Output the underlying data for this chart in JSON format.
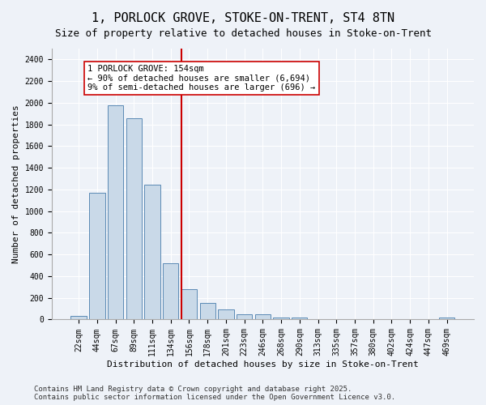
{
  "title_line1": "1, PORLOCK GROVE, STOKE-ON-TRENT, ST4 8TN",
  "title_line2": "Size of property relative to detached houses in Stoke-on-Trent",
  "xlabel": "Distribution of detached houses by size in Stoke-on-Trent",
  "ylabel": "Number of detached properties",
  "categories": [
    "22sqm",
    "44sqm",
    "67sqm",
    "89sqm",
    "111sqm",
    "134sqm",
    "156sqm",
    "178sqm",
    "201sqm",
    "223sqm",
    "246sqm",
    "268sqm",
    "290sqm",
    "313sqm",
    "335sqm",
    "357sqm",
    "380sqm",
    "402sqm",
    "424sqm",
    "447sqm",
    "469sqm"
  ],
  "values": [
    30,
    1170,
    1980,
    1860,
    1245,
    520,
    280,
    155,
    90,
    45,
    45,
    20,
    15,
    5,
    3,
    2,
    2,
    2,
    2,
    2,
    15
  ],
  "bar_color": "#c9d9e8",
  "bar_edge_color": "#5a8ab5",
  "vline_color": "#cc0000",
  "vline_x": 5.575,
  "annotation_text": "1 PORLOCK GROVE: 154sqm\n← 90% of detached houses are smaller (6,694)\n9% of semi-detached houses are larger (696) →",
  "annotation_box_color": "#ffffff",
  "annotation_box_edge_color": "#cc0000",
  "ylim": [
    0,
    2500
  ],
  "yticks": [
    0,
    200,
    400,
    600,
    800,
    1000,
    1200,
    1400,
    1600,
    1800,
    2000,
    2200,
    2400
  ],
  "bg_color": "#eef2f8",
  "plot_bg_color": "#eef2f8",
  "footer_text": "Contains HM Land Registry data © Crown copyright and database right 2025.\nContains public sector information licensed under the Open Government Licence v3.0.",
  "title_fontsize": 11,
  "subtitle_fontsize": 9,
  "axis_label_fontsize": 8,
  "tick_fontsize": 7,
  "annotation_fontsize": 7.5,
  "footer_fontsize": 6.5
}
